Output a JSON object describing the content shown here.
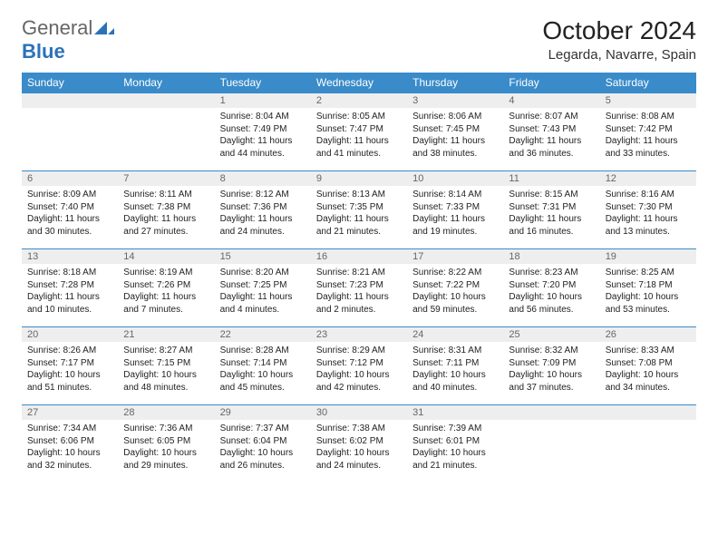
{
  "brand": {
    "general": "General",
    "blue": "Blue"
  },
  "title": "October 2024",
  "location": "Legarda, Navarre, Spain",
  "colors": {
    "header_bg": "#3a8bc9",
    "header_text": "#ffffff",
    "daynum_bg": "#eeeeee",
    "daynum_text": "#666666",
    "row_border": "#3a8bc9",
    "page_bg": "#ffffff",
    "body_text": "#222222",
    "brand_gray": "#666666",
    "brand_blue": "#2b72b9"
  },
  "typography": {
    "title_fontsize": 28,
    "location_fontsize": 15,
    "header_fontsize": 12,
    "daynum_fontsize": 11,
    "body_fontsize": 10
  },
  "day_headers": [
    "Sunday",
    "Monday",
    "Tuesday",
    "Wednesday",
    "Thursday",
    "Friday",
    "Saturday"
  ],
  "weeks": [
    [
      {
        "n": "",
        "sr": "",
        "ss": "",
        "dl": ""
      },
      {
        "n": "",
        "sr": "",
        "ss": "",
        "dl": ""
      },
      {
        "n": "1",
        "sr": "Sunrise: 8:04 AM",
        "ss": "Sunset: 7:49 PM",
        "dl": "Daylight: 11 hours and 44 minutes."
      },
      {
        "n": "2",
        "sr": "Sunrise: 8:05 AM",
        "ss": "Sunset: 7:47 PM",
        "dl": "Daylight: 11 hours and 41 minutes."
      },
      {
        "n": "3",
        "sr": "Sunrise: 8:06 AM",
        "ss": "Sunset: 7:45 PM",
        "dl": "Daylight: 11 hours and 38 minutes."
      },
      {
        "n": "4",
        "sr": "Sunrise: 8:07 AM",
        "ss": "Sunset: 7:43 PM",
        "dl": "Daylight: 11 hours and 36 minutes."
      },
      {
        "n": "5",
        "sr": "Sunrise: 8:08 AM",
        "ss": "Sunset: 7:42 PM",
        "dl": "Daylight: 11 hours and 33 minutes."
      }
    ],
    [
      {
        "n": "6",
        "sr": "Sunrise: 8:09 AM",
        "ss": "Sunset: 7:40 PM",
        "dl": "Daylight: 11 hours and 30 minutes."
      },
      {
        "n": "7",
        "sr": "Sunrise: 8:11 AM",
        "ss": "Sunset: 7:38 PM",
        "dl": "Daylight: 11 hours and 27 minutes."
      },
      {
        "n": "8",
        "sr": "Sunrise: 8:12 AM",
        "ss": "Sunset: 7:36 PM",
        "dl": "Daylight: 11 hours and 24 minutes."
      },
      {
        "n": "9",
        "sr": "Sunrise: 8:13 AM",
        "ss": "Sunset: 7:35 PM",
        "dl": "Daylight: 11 hours and 21 minutes."
      },
      {
        "n": "10",
        "sr": "Sunrise: 8:14 AM",
        "ss": "Sunset: 7:33 PM",
        "dl": "Daylight: 11 hours and 19 minutes."
      },
      {
        "n": "11",
        "sr": "Sunrise: 8:15 AM",
        "ss": "Sunset: 7:31 PM",
        "dl": "Daylight: 11 hours and 16 minutes."
      },
      {
        "n": "12",
        "sr": "Sunrise: 8:16 AM",
        "ss": "Sunset: 7:30 PM",
        "dl": "Daylight: 11 hours and 13 minutes."
      }
    ],
    [
      {
        "n": "13",
        "sr": "Sunrise: 8:18 AM",
        "ss": "Sunset: 7:28 PM",
        "dl": "Daylight: 11 hours and 10 minutes."
      },
      {
        "n": "14",
        "sr": "Sunrise: 8:19 AM",
        "ss": "Sunset: 7:26 PM",
        "dl": "Daylight: 11 hours and 7 minutes."
      },
      {
        "n": "15",
        "sr": "Sunrise: 8:20 AM",
        "ss": "Sunset: 7:25 PM",
        "dl": "Daylight: 11 hours and 4 minutes."
      },
      {
        "n": "16",
        "sr": "Sunrise: 8:21 AM",
        "ss": "Sunset: 7:23 PM",
        "dl": "Daylight: 11 hours and 2 minutes."
      },
      {
        "n": "17",
        "sr": "Sunrise: 8:22 AM",
        "ss": "Sunset: 7:22 PM",
        "dl": "Daylight: 10 hours and 59 minutes."
      },
      {
        "n": "18",
        "sr": "Sunrise: 8:23 AM",
        "ss": "Sunset: 7:20 PM",
        "dl": "Daylight: 10 hours and 56 minutes."
      },
      {
        "n": "19",
        "sr": "Sunrise: 8:25 AM",
        "ss": "Sunset: 7:18 PM",
        "dl": "Daylight: 10 hours and 53 minutes."
      }
    ],
    [
      {
        "n": "20",
        "sr": "Sunrise: 8:26 AM",
        "ss": "Sunset: 7:17 PM",
        "dl": "Daylight: 10 hours and 51 minutes."
      },
      {
        "n": "21",
        "sr": "Sunrise: 8:27 AM",
        "ss": "Sunset: 7:15 PM",
        "dl": "Daylight: 10 hours and 48 minutes."
      },
      {
        "n": "22",
        "sr": "Sunrise: 8:28 AM",
        "ss": "Sunset: 7:14 PM",
        "dl": "Daylight: 10 hours and 45 minutes."
      },
      {
        "n": "23",
        "sr": "Sunrise: 8:29 AM",
        "ss": "Sunset: 7:12 PM",
        "dl": "Daylight: 10 hours and 42 minutes."
      },
      {
        "n": "24",
        "sr": "Sunrise: 8:31 AM",
        "ss": "Sunset: 7:11 PM",
        "dl": "Daylight: 10 hours and 40 minutes."
      },
      {
        "n": "25",
        "sr": "Sunrise: 8:32 AM",
        "ss": "Sunset: 7:09 PM",
        "dl": "Daylight: 10 hours and 37 minutes."
      },
      {
        "n": "26",
        "sr": "Sunrise: 8:33 AM",
        "ss": "Sunset: 7:08 PM",
        "dl": "Daylight: 10 hours and 34 minutes."
      }
    ],
    [
      {
        "n": "27",
        "sr": "Sunrise: 7:34 AM",
        "ss": "Sunset: 6:06 PM",
        "dl": "Daylight: 10 hours and 32 minutes."
      },
      {
        "n": "28",
        "sr": "Sunrise: 7:36 AM",
        "ss": "Sunset: 6:05 PM",
        "dl": "Daylight: 10 hours and 29 minutes."
      },
      {
        "n": "29",
        "sr": "Sunrise: 7:37 AM",
        "ss": "Sunset: 6:04 PM",
        "dl": "Daylight: 10 hours and 26 minutes."
      },
      {
        "n": "30",
        "sr": "Sunrise: 7:38 AM",
        "ss": "Sunset: 6:02 PM",
        "dl": "Daylight: 10 hours and 24 minutes."
      },
      {
        "n": "31",
        "sr": "Sunrise: 7:39 AM",
        "ss": "Sunset: 6:01 PM",
        "dl": "Daylight: 10 hours and 21 minutes."
      },
      {
        "n": "",
        "sr": "",
        "ss": "",
        "dl": ""
      },
      {
        "n": "",
        "sr": "",
        "ss": "",
        "dl": ""
      }
    ]
  ]
}
